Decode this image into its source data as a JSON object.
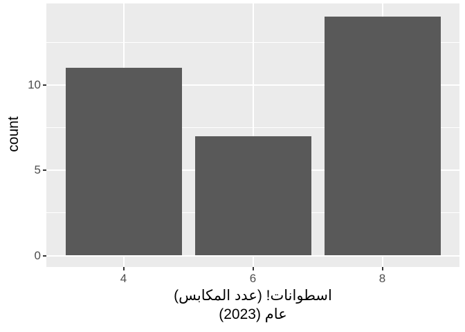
{
  "chart_data": {
    "type": "bar",
    "categories": [
      "4",
      "6",
      "8"
    ],
    "values": [
      11,
      7,
      14
    ],
    "title": "",
    "ylabel": "count",
    "xlabel_lines": [
      "اسطوانات! (عدد المكابس)",
      "عام (2023)"
    ],
    "y_major_ticks": [
      0,
      5,
      10
    ],
    "y_tick_labels": [
      "0",
      "5",
      "10"
    ],
    "y_minor_ticks": [
      2.5,
      7.5,
      12.5
    ],
    "ylim": [
      -0.6,
      14.8
    ],
    "grid": "major-and-minor",
    "legend_position": "none",
    "colors": {
      "bar_fill": "#595959",
      "panel_background": "#EBEBEB",
      "gridline": "#FFFFFF",
      "tick_label": "#4D4D4D",
      "tick_mark": "#333333",
      "axis_title": "#000000",
      "page_background": "#FFFFFF"
    }
  }
}
